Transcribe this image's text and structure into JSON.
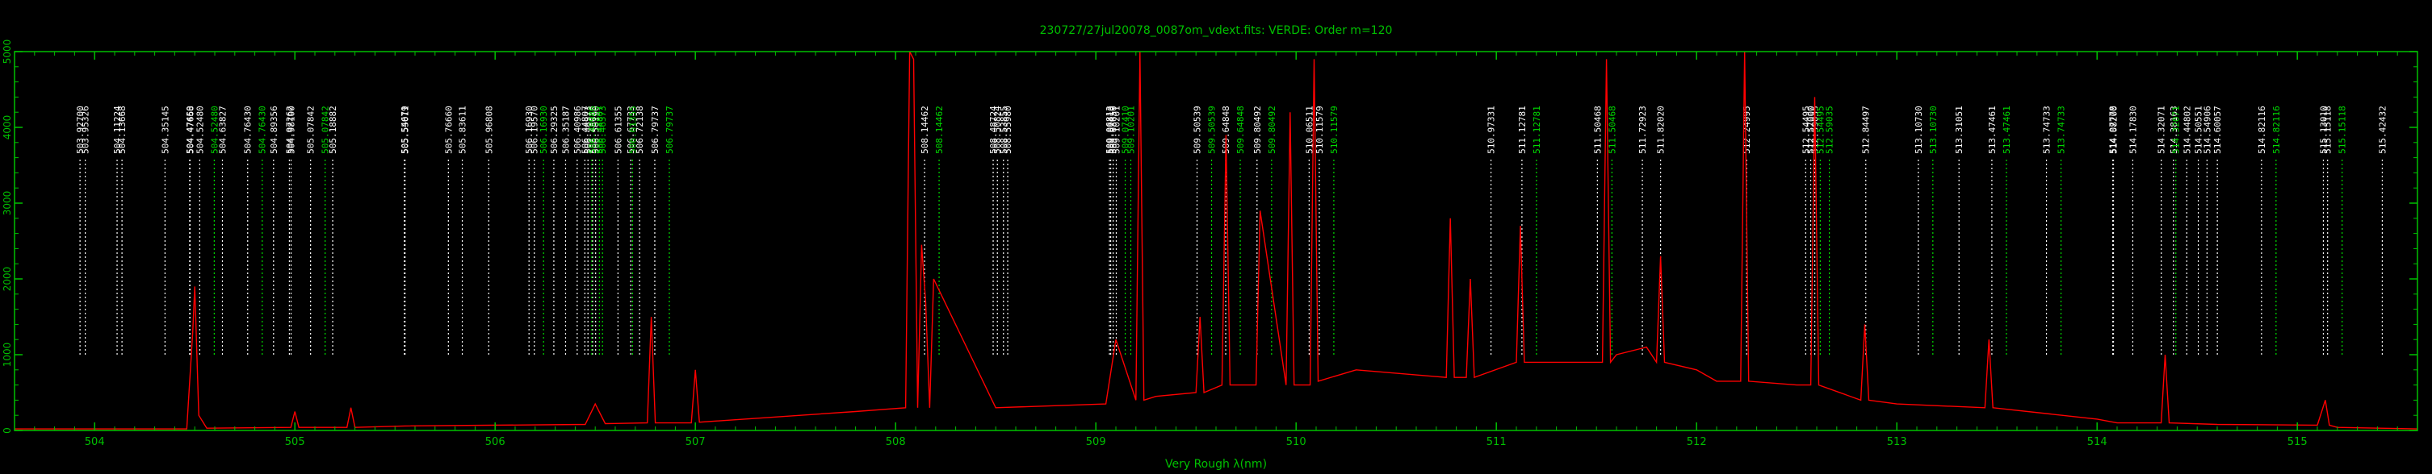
{
  "chart_data": {
    "type": "line",
    "title": "230727/27jul20078_0087om_vdext.fits: VERDE: Order m=120",
    "xlabel": "Very Rough λ(nm)",
    "ylabel": "",
    "xlim": [
      503.6,
      515.6
    ],
    "ylim": [
      0,
      5000
    ],
    "x_ticks": [
      "504",
      "505",
      "506",
      "507",
      "508",
      "509",
      "510",
      "511",
      "512",
      "513",
      "514",
      "515"
    ],
    "y_ticks": [
      "0",
      "1000",
      "2000",
      "3000",
      "4000",
      "5000"
    ],
    "grid": false,
    "colors": {
      "background": "#000000",
      "frame": "#00c000",
      "axis_text": "#00c000",
      "spectrum": "#ff0000",
      "white_line": "#ffffff",
      "green_line": "#00dd00"
    },
    "series": [
      {
        "role": "spectrum",
        "color": "#ff0000",
        "x": [
          503.6,
          504.46,
          504.49,
          504.5,
          504.52,
          504.56,
          504.98,
          505.0,
          505.02,
          505.26,
          505.28,
          505.3,
          505.55,
          506.45,
          506.5,
          506.55,
          506.76,
          506.78,
          506.8,
          506.98,
          507.0,
          507.02,
          507.8,
          508.05,
          508.07,
          508.09,
          508.11,
          508.13,
          508.15,
          508.17,
          508.19,
          508.5,
          509.05,
          509.1,
          509.2,
          509.22,
          509.24,
          509.3,
          509.5,
          509.52,
          509.54,
          509.63,
          509.65,
          509.67,
          509.8,
          509.82,
          509.95,
          509.97,
          509.99,
          510.07,
          510.09,
          510.11,
          510.3,
          510.75,
          510.77,
          510.79,
          510.85,
          510.87,
          510.89,
          511.1,
          511.12,
          511.14,
          511.53,
          511.55,
          511.57,
          511.6,
          511.75,
          511.8,
          511.82,
          511.84,
          512.0,
          512.1,
          512.22,
          512.24,
          512.26,
          512.5,
          512.57,
          512.59,
          512.61,
          512.82,
          512.84,
          512.86,
          513.0,
          513.44,
          513.46,
          513.48,
          514.0,
          514.1,
          514.32,
          514.34,
          514.36,
          514.6,
          515.1,
          515.14,
          515.16,
          515.2,
          515.6
        ],
        "y": [
          20,
          20,
          1300,
          1900,
          200,
          30,
          40,
          250,
          40,
          40,
          300,
          40,
          60,
          80,
          350,
          90,
          100,
          1500,
          100,
          100,
          800,
          110,
          250,
          300,
          5000,
          4900,
          300,
          2450,
          1700,
          300,
          2000,
          300,
          350,
          1200,
          400,
          5000,
          400,
          450,
          500,
          1500,
          500,
          600,
          3900,
          600,
          600,
          2900,
          600,
          4200,
          600,
          600,
          4900,
          650,
          800,
          700,
          2800,
          700,
          700,
          2000,
          700,
          900,
          2700,
          900,
          900,
          4900,
          900,
          1000,
          1100,
          900,
          2300,
          900,
          800,
          650,
          650,
          5000,
          650,
          600,
          600,
          4400,
          600,
          400,
          1400,
          400,
          350,
          300,
          1200,
          300,
          150,
          100,
          100,
          1000,
          100,
          80,
          70,
          400,
          70,
          40,
          20
        ]
      }
    ],
    "white_lines": [
      "503.92700",
      "503.95326",
      "504.11224",
      "504.13668",
      "504.35145",
      "504.47450",
      "504.47668",
      "504.52480",
      "504.63827",
      "504.76430",
      "504.89356",
      "504.97262",
      "504.98100",
      "505.07842",
      "505.18882",
      "505.54679",
      "505.55011",
      "505.76660",
      "505.83611",
      "505.96808",
      "506.16930",
      "506.19570",
      "506.29325",
      "506.35187",
      "506.40986",
      "506.44807",
      "506.46373",
      "506.48670",
      "506.50190",
      "506.61355",
      "506.67733",
      "506.72138",
      "506.79737",
      "508.14462",
      "508.48724",
      "508.50824",
      "508.53855",
      "508.55980",
      "509.06813",
      "509.07410",
      "509.08650",
      "509.10201",
      "509.50539",
      "509.64848",
      "509.80492",
      "510.06511",
      "510.11579",
      "510.97331",
      "511.12781",
      "511.50468",
      "511.72923",
      "511.82020",
      "512.24995",
      "512.54495",
      "512.57000",
      "512.59035",
      "512.84497",
      "513.10730",
      "513.31051",
      "513.47461",
      "513.74733",
      "514.07778",
      "514.08200",
      "514.17830",
      "514.32071",
      "514.38163",
      "514.44802",
      "514.50551",
      "514.54906",
      "514.60057",
      "514.82116",
      "515.13010",
      "515.15118",
      "515.42432"
    ],
    "green_lines": [
      "504.52480",
      "504.76430",
      "505.07842",
      "506.16930",
      "506.40986",
      "506.44807",
      "506.46373",
      "506.61355",
      "506.79737",
      "508.14462",
      "509.07410",
      "509.10201",
      "509.50539",
      "509.64848",
      "509.80492",
      "510.11579",
      "511.12781",
      "511.50468",
      "512.54495",
      "512.59035",
      "513.10730",
      "513.47461",
      "513.74733",
      "514.32071",
      "514.82116",
      "515.15118"
    ]
  }
}
